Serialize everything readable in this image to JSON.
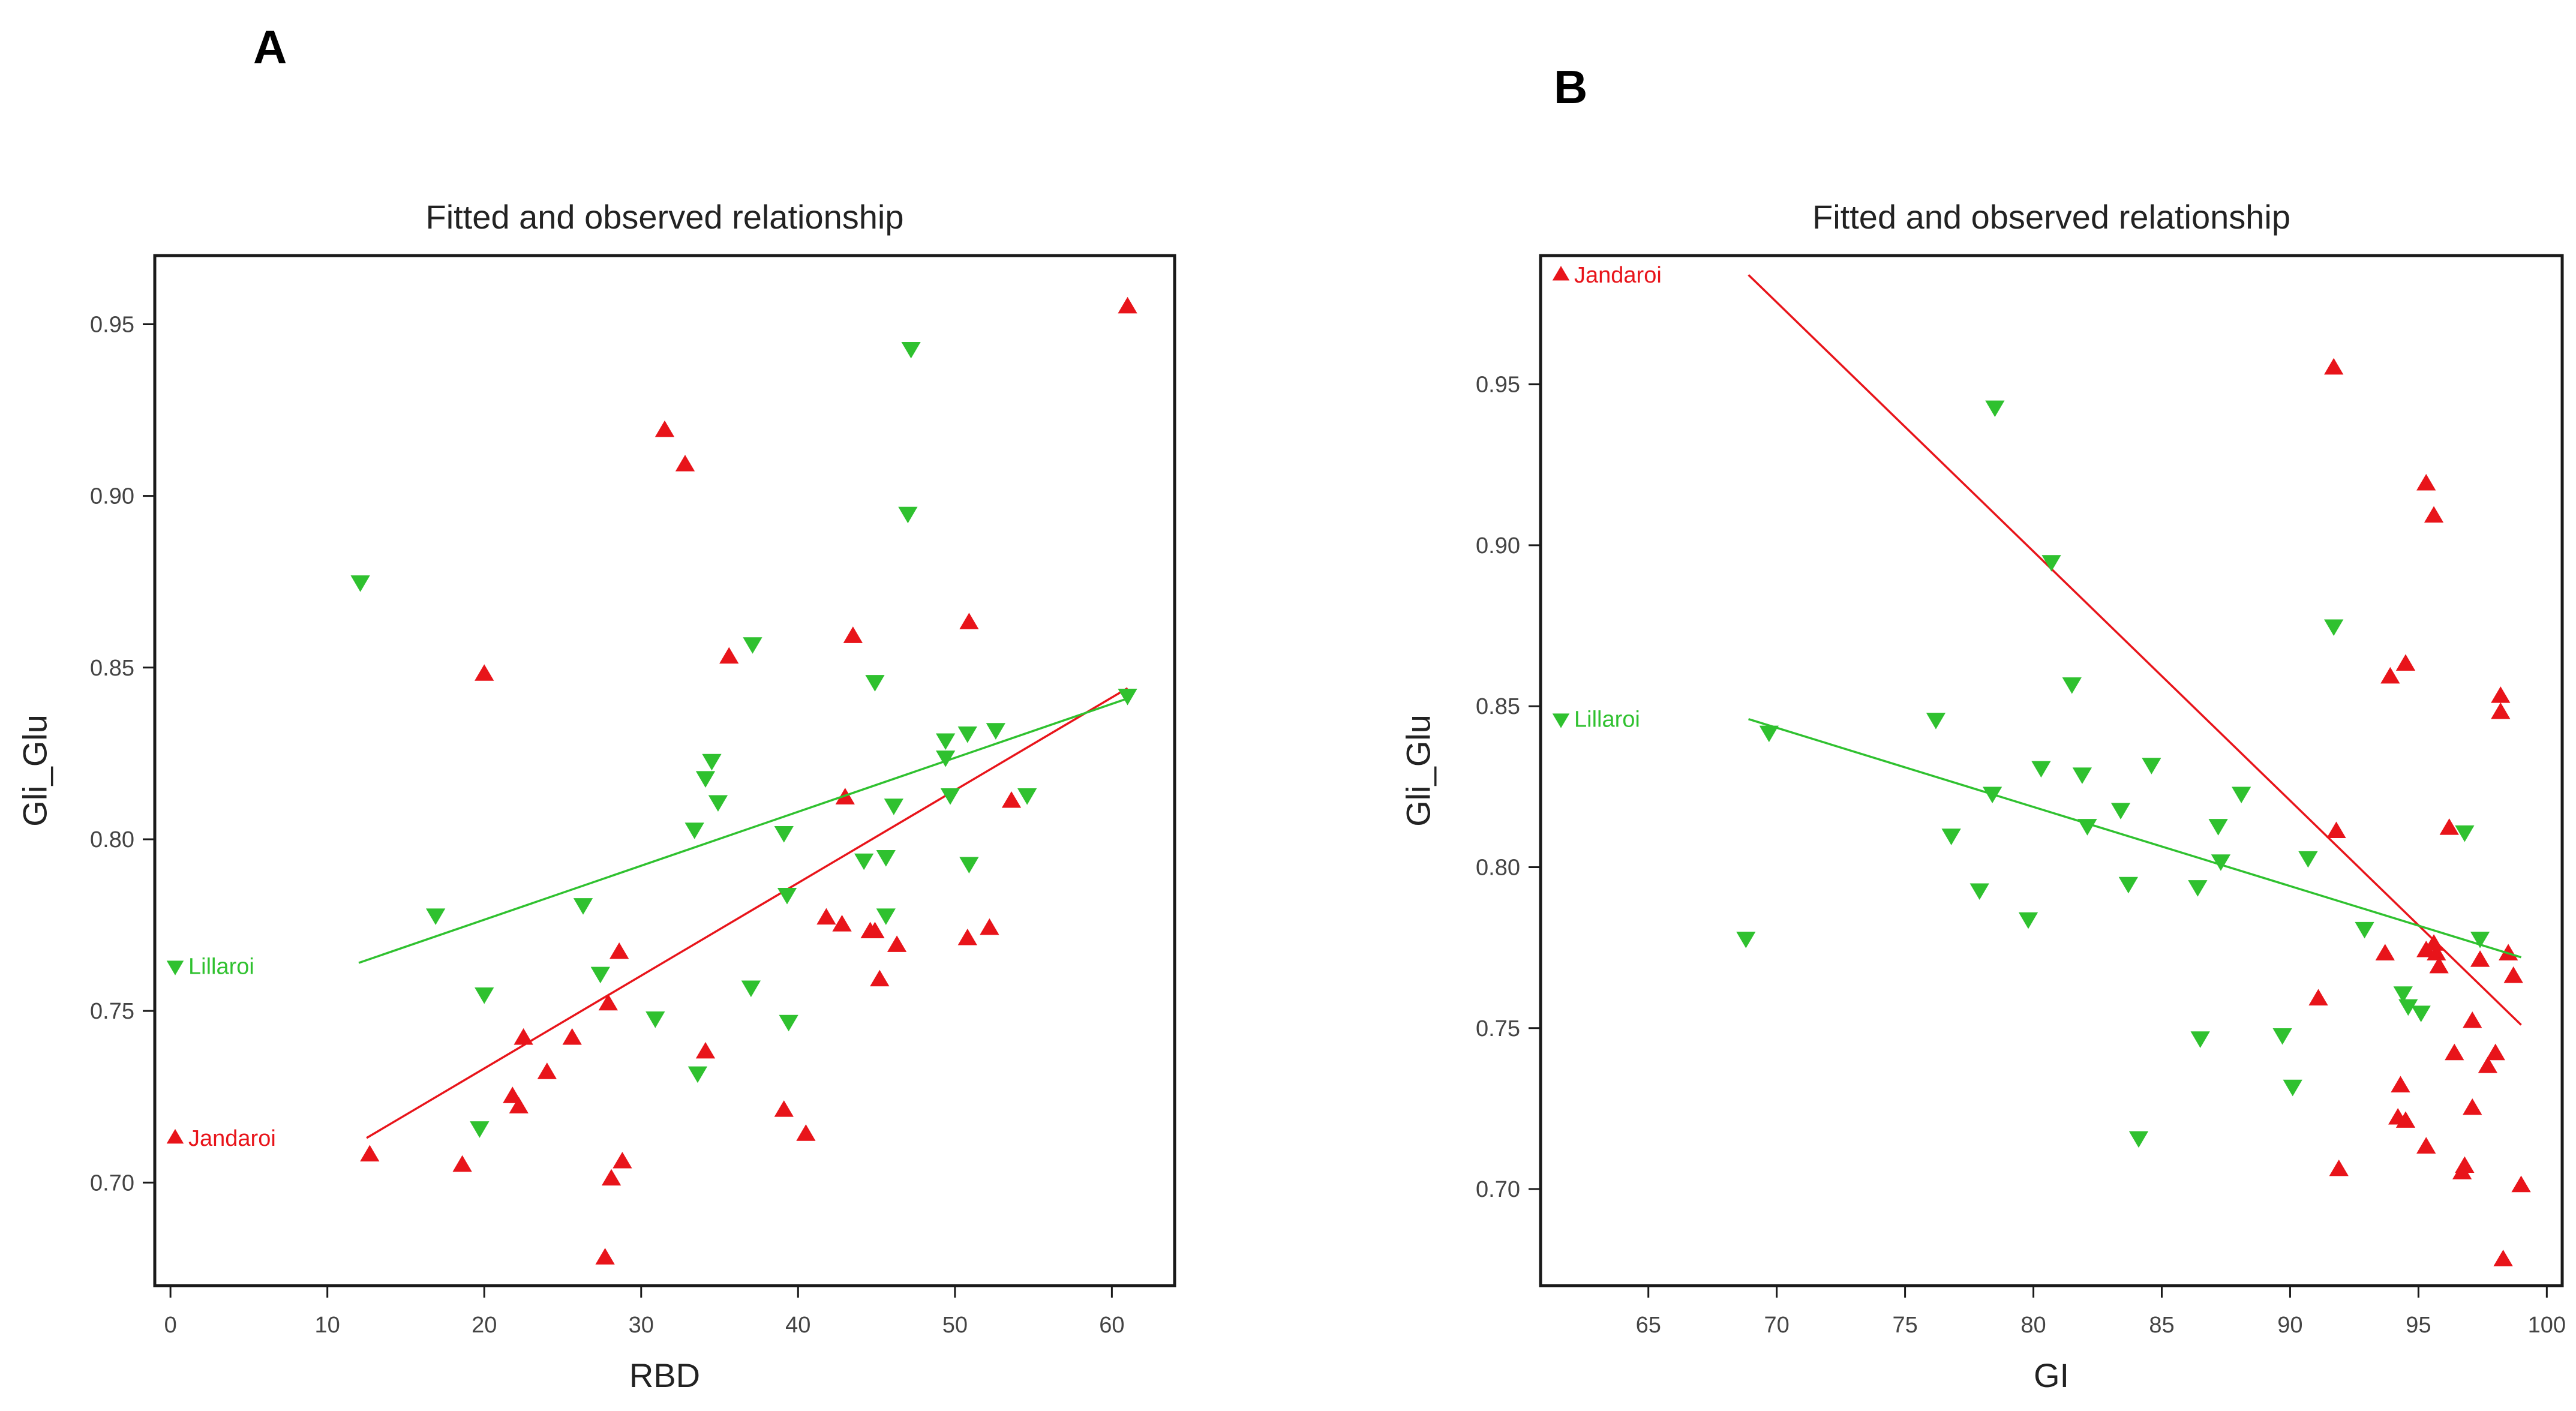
{
  "colors": {
    "jandaroi": "#e8141a",
    "lillaroi": "#2fc12f",
    "axis": "#1a1a1a",
    "text": "#222222"
  },
  "chart_data": [
    {
      "panel": "A",
      "type": "scatter",
      "title": "Fitted and observed relationship",
      "xlabel": "RBD",
      "ylabel": "Gli_Glu",
      "xlim": [
        -1,
        64
      ],
      "ylim": [
        0.67,
        0.97
      ],
      "xticks": [
        0,
        10,
        20,
        30,
        40,
        50,
        60
      ],
      "yticks": [
        0.7,
        0.75,
        0.8,
        0.85,
        0.9,
        0.95
      ],
      "xtick_labels": [
        "0",
        "10",
        "20",
        "30",
        "40",
        "50",
        "60"
      ],
      "ytick_labels": [
        "0.70",
        "0.75",
        "0.80",
        "0.85",
        "0.90",
        "0.95"
      ],
      "legend_placement": "left",
      "series": [
        {
          "name": "Jandaroi",
          "marker": "triangle-up",
          "legend_y": 0.713,
          "fit": {
            "x": [
              12.5,
              61
            ],
            "y": [
              0.713,
              0.844
            ]
          },
          "points": [
            [
              12.7,
              0.708
            ],
            [
              18.6,
              0.705
            ],
            [
              20.0,
              0.848
            ],
            [
              21.8,
              0.725
            ],
            [
              22.2,
              0.722
            ],
            [
              22.5,
              0.742
            ],
            [
              24.0,
              0.732
            ],
            [
              25.6,
              0.742
            ],
            [
              27.7,
              0.678
            ],
            [
              27.9,
              0.752
            ],
            [
              28.1,
              0.701
            ],
            [
              28.6,
              0.767
            ],
            [
              28.8,
              0.706
            ],
            [
              31.5,
              0.919
            ],
            [
              32.8,
              0.909
            ],
            [
              34.1,
              0.738
            ],
            [
              35.6,
              0.853
            ],
            [
              39.1,
              0.721
            ],
            [
              40.5,
              0.714
            ],
            [
              41.8,
              0.777
            ],
            [
              42.8,
              0.775
            ],
            [
              43.0,
              0.812
            ],
            [
              43.5,
              0.859
            ],
            [
              44.6,
              0.773
            ],
            [
              44.9,
              0.773
            ],
            [
              45.2,
              0.759
            ],
            [
              46.3,
              0.769
            ],
            [
              50.9,
              0.863
            ],
            [
              50.8,
              0.771
            ],
            [
              52.2,
              0.774
            ],
            [
              53.6,
              0.811
            ],
            [
              61.0,
              0.955
            ]
          ]
        },
        {
          "name": "Lillaroi",
          "marker": "triangle-down",
          "legend_y": 0.763,
          "fit": {
            "x": [
              12,
              61
            ],
            "y": [
              0.764,
              0.841
            ]
          },
          "points": [
            [
              12.1,
              0.875
            ],
            [
              16.9,
              0.778
            ],
            [
              19.7,
              0.716
            ],
            [
              20.0,
              0.755
            ],
            [
              26.3,
              0.781
            ],
            [
              27.4,
              0.761
            ],
            [
              30.9,
              0.748
            ],
            [
              33.4,
              0.803
            ],
            [
              33.6,
              0.732
            ],
            [
              34.1,
              0.818
            ],
            [
              34.5,
              0.823
            ],
            [
              34.9,
              0.811
            ],
            [
              37.0,
              0.757
            ],
            [
              37.1,
              0.857
            ],
            [
              39.1,
              0.802
            ],
            [
              39.3,
              0.784
            ],
            [
              39.4,
              0.747
            ],
            [
              44.2,
              0.794
            ],
            [
              44.9,
              0.846
            ],
            [
              45.6,
              0.778
            ],
            [
              45.6,
              0.795
            ],
            [
              46.1,
              0.81
            ],
            [
              47.0,
              0.895
            ],
            [
              47.2,
              0.943
            ],
            [
              49.4,
              0.829
            ],
            [
              49.4,
              0.824
            ],
            [
              49.7,
              0.813
            ],
            [
              50.8,
              0.831
            ],
            [
              50.9,
              0.793
            ],
            [
              52.6,
              0.832
            ],
            [
              54.6,
              0.813
            ],
            [
              61.0,
              0.842
            ]
          ]
        }
      ]
    },
    {
      "panel": "B",
      "type": "scatter",
      "title": "Fitted and observed relationship",
      "xlabel": "GI",
      "ylabel": "Gli_Glu",
      "xlim": [
        60.8,
        100.6
      ],
      "ylim": [
        0.67,
        0.99
      ],
      "xticks": [
        65,
        70,
        75,
        80,
        85,
        90,
        95,
        100
      ],
      "yticks": [
        0.7,
        0.75,
        0.8,
        0.85,
        0.9,
        0.95
      ],
      "xtick_labels": [
        "65",
        "70",
        "75",
        "80",
        "85",
        "90",
        "95",
        "100"
      ],
      "ytick_labels": [
        "0.70",
        "0.75",
        "0.80",
        "0.85",
        "0.90",
        "0.95"
      ],
      "legend_placement": "left",
      "series": [
        {
          "name": "Jandaroi",
          "marker": "triangle-up",
          "legend_y": 0.984,
          "fit": {
            "x": [
              68.9,
              99.0
            ],
            "y": [
              0.984,
              0.751
            ]
          },
          "points": [
            [
              91.7,
              0.955
            ],
            [
              95.3,
              0.919
            ],
            [
              95.6,
              0.909
            ],
            [
              93.9,
              0.859
            ],
            [
              94.5,
              0.863
            ],
            [
              98.2,
              0.853
            ],
            [
              98.2,
              0.848
            ],
            [
              96.2,
              0.812
            ],
            [
              91.8,
              0.811
            ],
            [
              91.1,
              0.759
            ],
            [
              93.7,
              0.773
            ],
            [
              95.3,
              0.774
            ],
            [
              95.6,
              0.776
            ],
            [
              95.7,
              0.773
            ],
            [
              95.8,
              0.769
            ],
            [
              98.5,
              0.773
            ],
            [
              97.4,
              0.771
            ],
            [
              98.7,
              0.766
            ],
            [
              97.1,
              0.752
            ],
            [
              96.4,
              0.742
            ],
            [
              98.0,
              0.742
            ],
            [
              97.7,
              0.738
            ],
            [
              94.3,
              0.732
            ],
            [
              94.2,
              0.722
            ],
            [
              94.5,
              0.721
            ],
            [
              97.1,
              0.725
            ],
            [
              95.3,
              0.713
            ],
            [
              96.8,
              0.707
            ],
            [
              96.7,
              0.705
            ],
            [
              91.9,
              0.706
            ],
            [
              99.0,
              0.701
            ],
            [
              98.3,
              0.678
            ]
          ]
        },
        {
          "name": "Lillaroi",
          "marker": "triangle-down",
          "legend_y": 0.846,
          "fit": {
            "x": [
              68.9,
              99.0
            ],
            "y": [
              0.846,
              0.772
            ]
          },
          "points": [
            [
              78.5,
              0.943
            ],
            [
              80.7,
              0.895
            ],
            [
              91.7,
              0.875
            ],
            [
              81.5,
              0.857
            ],
            [
              69.7,
              0.842
            ],
            [
              76.2,
              0.846
            ],
            [
              84.6,
              0.832
            ],
            [
              80.3,
              0.831
            ],
            [
              81.9,
              0.829
            ],
            [
              88.1,
              0.823
            ],
            [
              78.4,
              0.823
            ],
            [
              83.4,
              0.818
            ],
            [
              82.1,
              0.813
            ],
            [
              87.2,
              0.813
            ],
            [
              76.8,
              0.81
            ],
            [
              96.8,
              0.811
            ],
            [
              87.3,
              0.802
            ],
            [
              90.7,
              0.803
            ],
            [
              83.7,
              0.795
            ],
            [
              86.4,
              0.794
            ],
            [
              77.9,
              0.793
            ],
            [
              79.8,
              0.784
            ],
            [
              92.9,
              0.781
            ],
            [
              68.8,
              0.778
            ],
            [
              97.4,
              0.778
            ],
            [
              94.4,
              0.761
            ],
            [
              94.6,
              0.757
            ],
            [
              95.1,
              0.755
            ],
            [
              89.7,
              0.748
            ],
            [
              86.5,
              0.747
            ],
            [
              90.1,
              0.732
            ],
            [
              84.1,
              0.716
            ]
          ]
        }
      ]
    }
  ]
}
